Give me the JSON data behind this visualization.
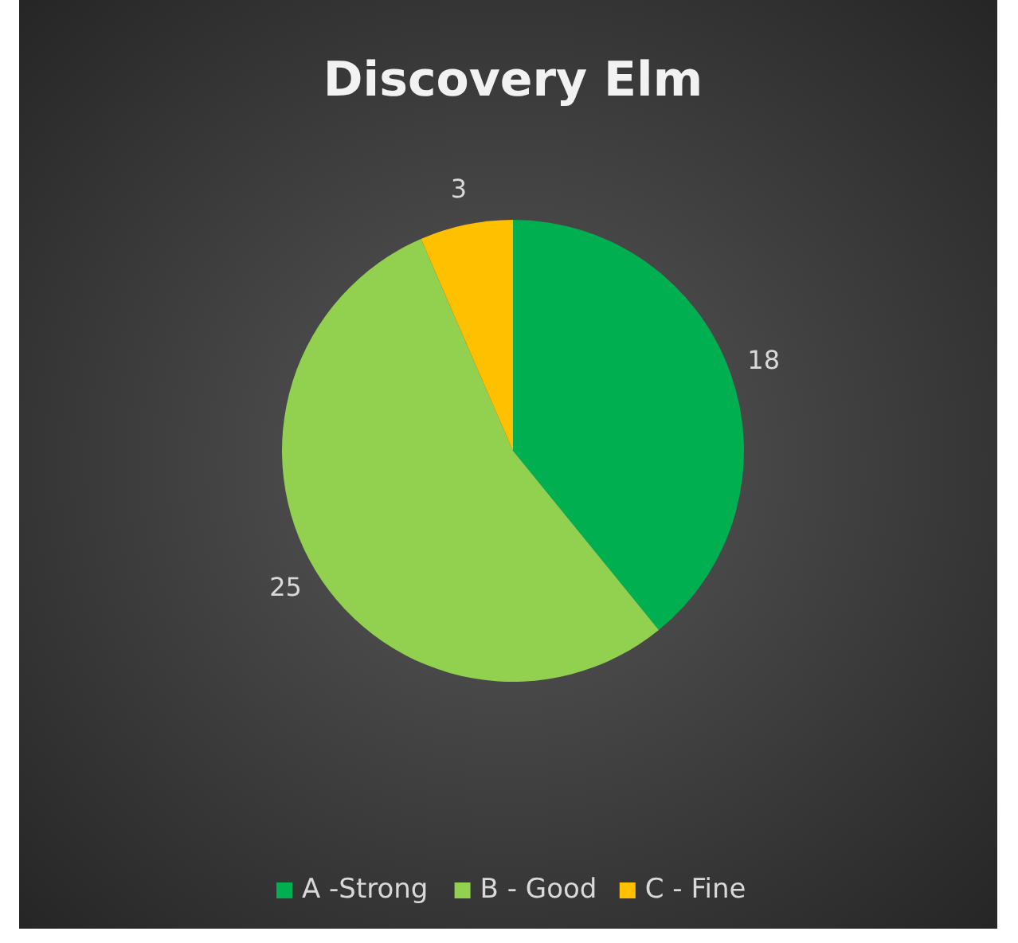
{
  "chart_data": {
    "type": "pie",
    "title": "Discovery Elm",
    "categories": [
      "A -Strong",
      "B - Good",
      "C - Fine"
    ],
    "values": [
      18,
      25,
      3
    ],
    "colors": [
      "#00b050",
      "#92d050",
      "#ffc000"
    ],
    "data_labels": true,
    "legend": "bottom"
  }
}
